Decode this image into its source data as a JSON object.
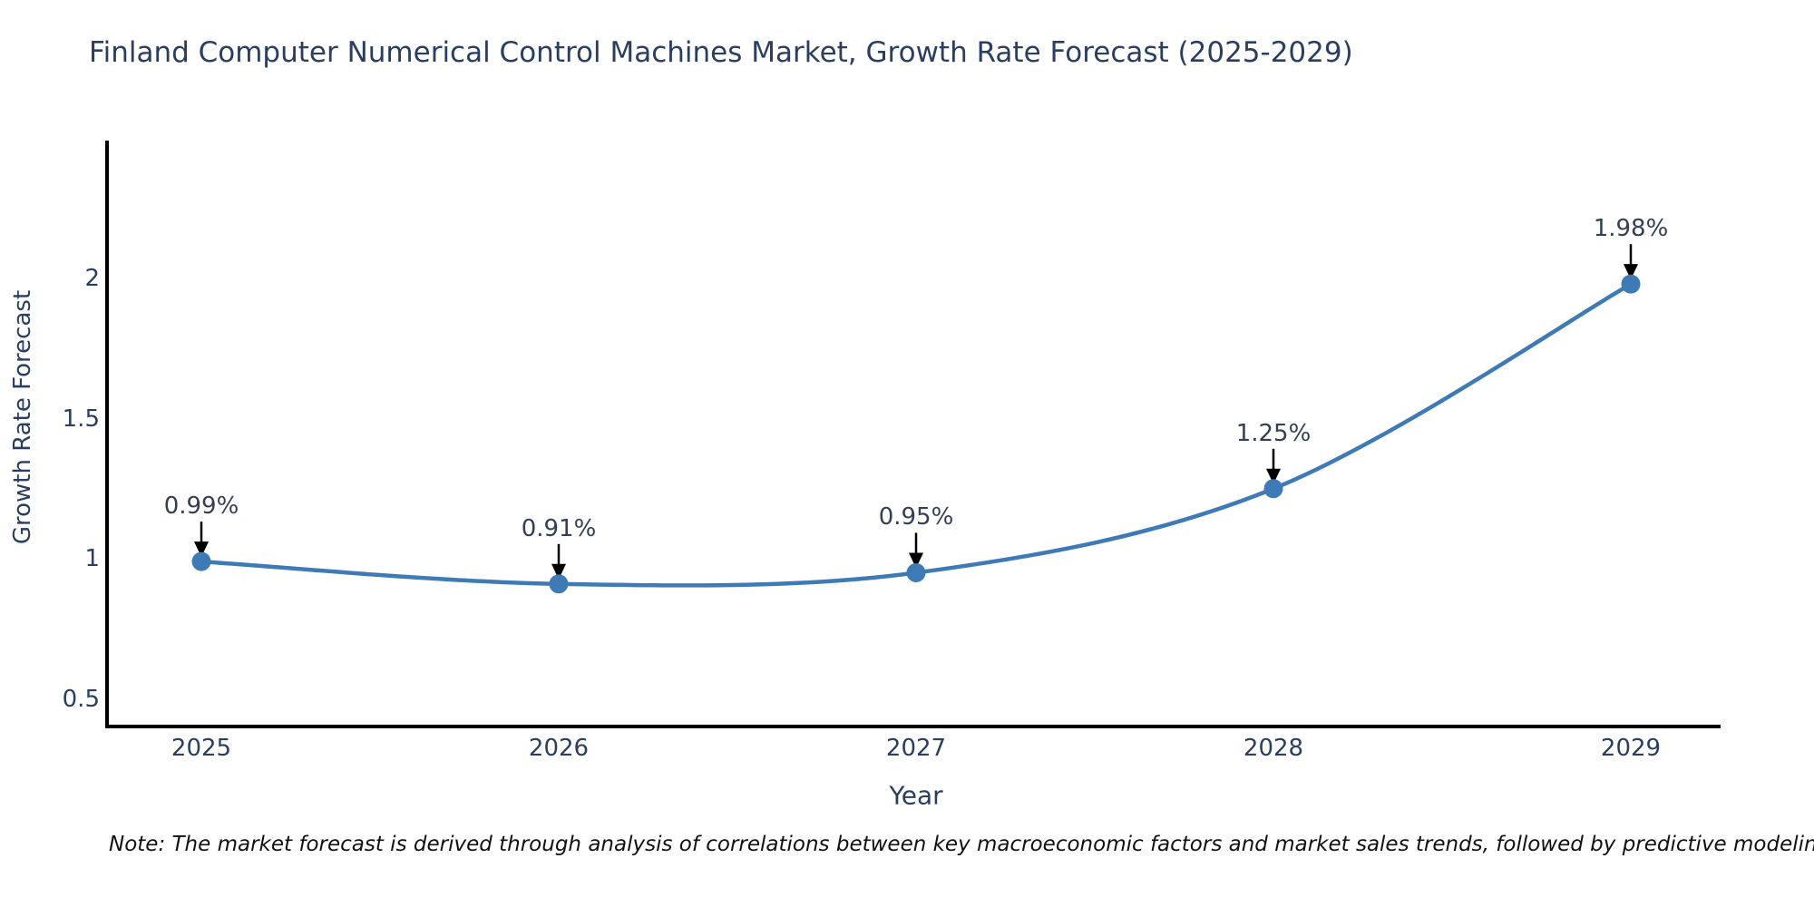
{
  "title": "Finland Computer Numerical Control Machines Market, Growth Rate Forecast (2025-2029)",
  "note": "Note: The market forecast is derived through analysis of correlations between key macroeconomic factors and market sales trends, followed by predictive modeling to project future sales",
  "chart_data": {
    "type": "line",
    "title": "Finland Computer Numerical Control Machines Market, Growth Rate Forecast (2025-2029)",
    "xlabel": "Year",
    "ylabel": "Growth Rate Forecast",
    "x": [
      2025,
      2026,
      2027,
      2028,
      2029
    ],
    "values": [
      0.99,
      0.91,
      0.95,
      1.25,
      1.98
    ],
    "series": [
      {
        "name": "Growth Rate Forecast",
        "values": [
          0.99,
          0.91,
          0.95,
          1.25,
          1.98
        ]
      }
    ],
    "annotations": [
      "0.99%",
      "0.91%",
      "0.95%",
      "1.25%",
      "1.98%"
    ],
    "x_tick_labels": [
      "2025",
      "2026",
      "2027",
      "2028",
      "2029"
    ],
    "y_ticks": [
      0.5,
      1,
      1.5,
      2
    ],
    "y_tick_labels": [
      "0.5",
      "1",
      "1.5",
      "2"
    ],
    "ylim": [
      0.4,
      2.5
    ],
    "grid": false,
    "legend": false,
    "line_color": "#3d7ab6",
    "marker_color": "#3d7ab6",
    "axis_color": "#000000",
    "arrow_color": "#000000",
    "text_color": "#2a3f5f"
  }
}
